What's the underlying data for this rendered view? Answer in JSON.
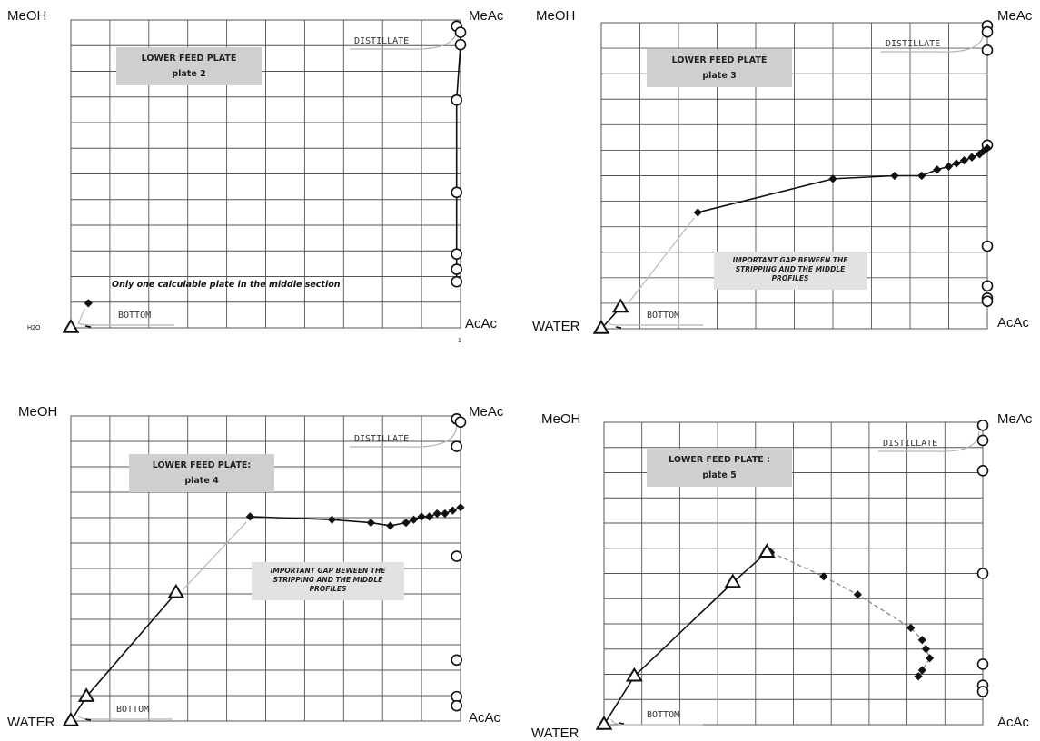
{
  "chart_data": [
    {
      "type": "line",
      "corner_labels": {
        "top_left": "MeOH",
        "top_right": "MeAc",
        "bottom_left": "H2O",
        "bottom_right": "AcAc"
      },
      "distillate_label": "DISTILLATE",
      "bottom_label": "BOTTOM",
      "x_tick_right": "1",
      "box_lines": [
        "LOWER FEED PLATE",
        "plate 2"
      ],
      "note_lines": [
        "Only one calculable plate in the middle section"
      ],
      "series": [
        {
          "marker": "circle",
          "style": "solid",
          "points": [
            [
              0.99,
              0.98
            ],
            [
              1.0,
              0.96
            ],
            [
              1.0,
              0.92
            ],
            [
              0.99,
              0.74
            ],
            [
              0.99,
              0.44
            ],
            [
              0.99,
              0.24
            ],
            [
              0.99,
              0.19
            ],
            [
              0.99,
              0.15
            ]
          ]
        },
        {
          "marker": "diamond",
          "style": "solid",
          "points": [
            [
              0.045,
              0.08
            ]
          ]
        },
        {
          "marker": "triangle",
          "style": "solid",
          "points": [
            [
              0.0,
              0.0
            ]
          ]
        }
      ]
    },
    {
      "type": "line",
      "corner_labels": {
        "top_left": "MeOH",
        "top_right": "MeAc",
        "bottom_left": "WATER",
        "bottom_right": "AcAc"
      },
      "distillate_label": "DISTILLATE",
      "bottom_label": "BOTTOM",
      "box_lines": [
        "LOWER FEED PLATE",
        "plate 3"
      ],
      "note_lines": [
        "IMPORTANT GAP BEWEEN THE",
        "STRIPPING AND THE MIDDLE",
        "PROFILES"
      ],
      "series": [
        {
          "marker": "circle",
          "style": "none",
          "points": [
            [
              1.0,
              0.99
            ],
            [
              1.0,
              0.97
            ],
            [
              1.0,
              0.91
            ],
            [
              1.0,
              0.6
            ],
            [
              1.0,
              0.27
            ],
            [
              1.0,
              0.14
            ],
            [
              1.0,
              0.1
            ],
            [
              1.0,
              0.09
            ]
          ]
        },
        {
          "marker": "diamond",
          "style": "solid",
          "points": [
            [
              0.25,
              0.38
            ],
            [
              0.6,
              0.49
            ],
            [
              0.76,
              0.5
            ],
            [
              0.83,
              0.5
            ],
            [
              0.87,
              0.52
            ],
            [
              0.9,
              0.53
            ],
            [
              0.92,
              0.54
            ],
            [
              0.94,
              0.55
            ],
            [
              0.96,
              0.56
            ],
            [
              0.98,
              0.57
            ],
            [
              0.99,
              0.58
            ],
            [
              1.0,
              0.59
            ]
          ]
        },
        {
          "marker": "triangle",
          "style": "solid",
          "points": [
            [
              0.0,
              0.0
            ],
            [
              0.05,
              0.07
            ]
          ]
        }
      ]
    },
    {
      "type": "line",
      "corner_labels": {
        "top_left": "MeOH",
        "top_right": "MeAc",
        "bottom_left": "WATER",
        "bottom_right": "AcAc"
      },
      "distillate_label": "DISTILLATE",
      "bottom_label": "BOTTOM",
      "box_lines": [
        "LOWER FEED PLATE:",
        "plate 4"
      ],
      "note_lines": [
        "IMPORTANT GAP BEWEEN THE",
        "STRIPPING AND THE MIDDLE",
        "PROFILES"
      ],
      "series": [
        {
          "marker": "circle",
          "style": "none",
          "points": [
            [
              0.99,
              0.99
            ],
            [
              1.0,
              0.98
            ],
            [
              0.99,
              0.9
            ],
            [
              0.99,
              0.54
            ],
            [
              0.99,
              0.2
            ],
            [
              0.99,
              0.08
            ],
            [
              0.99,
              0.05
            ]
          ]
        },
        {
          "marker": "diamond",
          "style": "solid",
          "points": [
            [
              0.46,
              0.67
            ],
            [
              0.67,
              0.66
            ],
            [
              0.77,
              0.65
            ],
            [
              0.82,
              0.64
            ],
            [
              0.86,
              0.65
            ],
            [
              0.88,
              0.66
            ],
            [
              0.9,
              0.67
            ],
            [
              0.92,
              0.67
            ],
            [
              0.94,
              0.68
            ],
            [
              0.96,
              0.68
            ],
            [
              0.98,
              0.69
            ],
            [
              1.0,
              0.7
            ]
          ]
        },
        {
          "marker": "triangle",
          "style": "solid",
          "points": [
            [
              0.0,
              0.0
            ],
            [
              0.04,
              0.08
            ],
            [
              0.27,
              0.42
            ]
          ]
        }
      ]
    },
    {
      "type": "line",
      "corner_labels": {
        "top_left": "MeOH",
        "top_right": "MeAc",
        "bottom_left": "WATER",
        "bottom_right": "AcAc"
      },
      "distillate_label": "DISTILLATE",
      "bottom_label": "BOTTOM",
      "box_lines": [
        "LOWER FEED PLATE :",
        "plate 5"
      ],
      "note_lines": [],
      "series": [
        {
          "marker": "circle",
          "style": "none",
          "points": [
            [
              1.0,
              0.99
            ],
            [
              1.0,
              0.94
            ],
            [
              1.0,
              0.84
            ],
            [
              1.0,
              0.5
            ],
            [
              1.0,
              0.2
            ],
            [
              1.0,
              0.13
            ],
            [
              1.0,
              0.11
            ]
          ]
        },
        {
          "marker": "diamond",
          "style": "dashed",
          "points": [
            [
              0.44,
              0.57
            ],
            [
              0.58,
              0.49
            ],
            [
              0.67,
              0.43
            ],
            [
              0.81,
              0.32
            ],
            [
              0.84,
              0.28
            ],
            [
              0.85,
              0.25
            ],
            [
              0.86,
              0.22
            ],
            [
              0.84,
              0.18
            ],
            [
              0.83,
              0.16
            ]
          ]
        },
        {
          "marker": "triangle",
          "style": "solid",
          "points": [
            [
              0.0,
              0.0
            ],
            [
              0.08,
              0.16
            ],
            [
              0.34,
              0.47
            ],
            [
              0.43,
              0.57
            ]
          ]
        }
      ]
    }
  ]
}
